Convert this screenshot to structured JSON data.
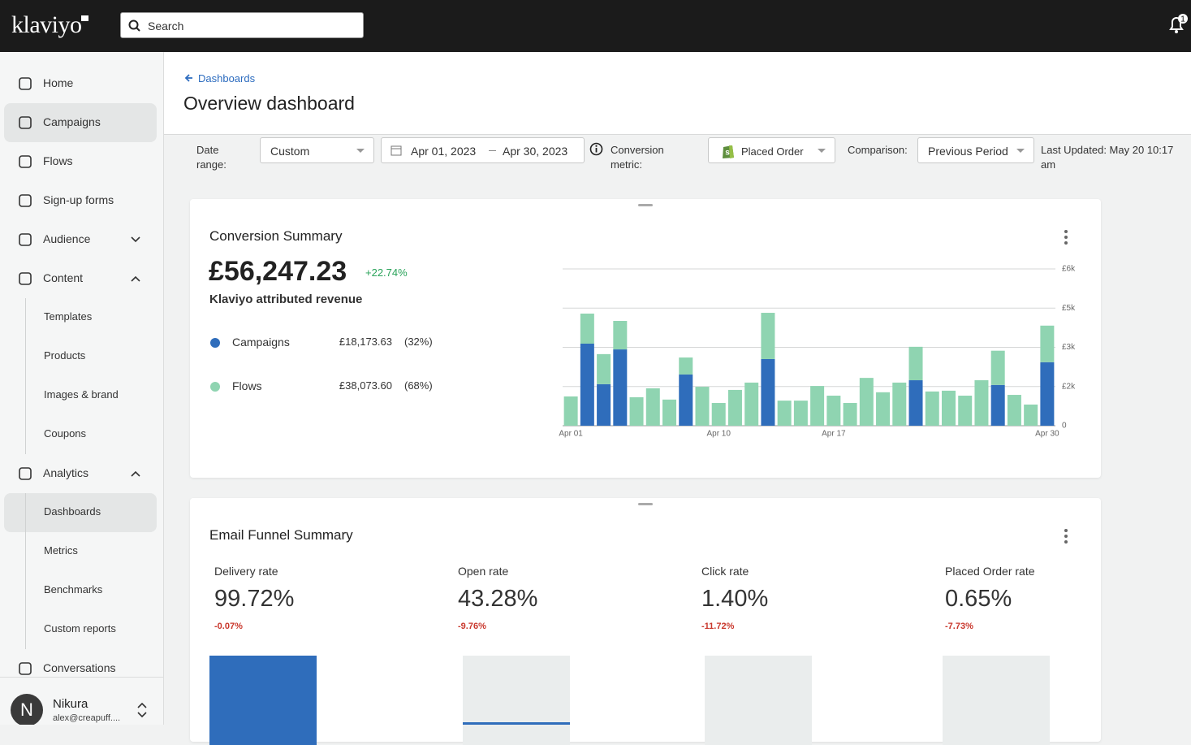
{
  "topbar": {
    "logo": "klaviyo",
    "search_placeholder": "Search",
    "notifications": "1"
  },
  "sidebar": {
    "items": [
      {
        "label": "Home"
      },
      {
        "label": "Campaigns",
        "active": true
      },
      {
        "label": "Flows"
      },
      {
        "label": "Sign-up forms"
      },
      {
        "label": "Audience",
        "chevron": "down"
      },
      {
        "label": "Content",
        "chevron": "up",
        "children": [
          {
            "label": "Templates"
          },
          {
            "label": "Products"
          },
          {
            "label": "Images & brand"
          },
          {
            "label": "Coupons"
          }
        ]
      },
      {
        "label": "Analytics",
        "chevron": "up",
        "children": [
          {
            "label": "Dashboards",
            "active": true
          },
          {
            "label": "Metrics"
          },
          {
            "label": "Benchmarks"
          },
          {
            "label": "Custom reports"
          }
        ]
      },
      {
        "label": "Conversations"
      }
    ],
    "user": {
      "avatar": "N",
      "name": "Nikura",
      "email": "alex@creapuff...."
    }
  },
  "header": {
    "breadcrumb": "Dashboards",
    "title": "Overview dashboard"
  },
  "filters": {
    "date_range_label": "Date range:",
    "date_range": "Custom",
    "start_date": "Apr 01, 2023",
    "end_date": "Apr 30, 2023",
    "conversion_label": "Conversion metric:",
    "conversion_metric": "Placed Order",
    "comparison_label": "Comparison:",
    "comparison": "Previous Period",
    "last_updated": "Last Updated: May 20 10:17 am"
  },
  "conversion_card": {
    "title": "Conversion Summary",
    "total": "£56,247.23",
    "change": "+22.74%",
    "subtitle": "Klaviyo attributed revenue",
    "amounts": [
      "£18,173.63",
      "£38,073.60"
    ],
    "shares": [
      "(32%)",
      "(68%)"
    ]
  },
  "chart_data": {
    "type": "stacked_bar",
    "categories": [
      "Apr 01",
      null,
      null,
      null,
      null,
      null,
      null,
      null,
      null,
      "Apr 10",
      null,
      null,
      null,
      null,
      null,
      null,
      "Apr 17",
      null,
      null,
      null,
      null,
      null,
      null,
      null,
      null,
      null,
      null,
      null,
      null,
      "Apr 30"
    ],
    "series": [
      {
        "name": "Campaigns",
        "color": "#2f6dbb",
        "values": [
          0,
          3140,
          1590,
          2920,
          0,
          0,
          0,
          1960,
          0,
          0,
          0,
          0,
          2550,
          0,
          0,
          0,
          0,
          0,
          0,
          0,
          0,
          1740,
          0,
          0,
          0,
          0,
          1560,
          0,
          0,
          2430
        ]
      },
      {
        "name": "Flows",
        "color": "#8fd4b1",
        "values": [
          1120,
          1150,
          1150,
          1090,
          1090,
          1430,
          1000,
          650,
          1490,
          870,
          1370,
          1650,
          1770,
          960,
          960,
          1520,
          1150,
          870,
          1830,
          1280,
          1650,
          1280,
          1310,
          1340,
          1150,
          1740,
          1310,
          1180,
          810,
          1400
        ]
      }
    ],
    "ylim": [
      0,
      6000
    ],
    "yticks": [
      0,
      {
        "value": 1500,
        "label": "£2k"
      },
      {
        "value": 3000,
        "label": "£3k"
      },
      {
        "value": 4500,
        "label": "£5k"
      },
      {
        "value": 6000,
        "label": "£6k"
      }
    ],
    "grid": true
  },
  "funnel_card": {
    "title": "Email Funnel Summary",
    "metrics": [
      {
        "label": "Delivery rate",
        "value": "99.72%",
        "change": "-0.07%"
      },
      {
        "label": "Open rate",
        "value": "43.28%",
        "change": "-9.76%"
      },
      {
        "label": "Click rate",
        "value": "1.40%",
        "change": "-11.72%"
      },
      {
        "label": "Placed Order rate",
        "value": "0.65%",
        "change": "-7.73%"
      }
    ]
  }
}
